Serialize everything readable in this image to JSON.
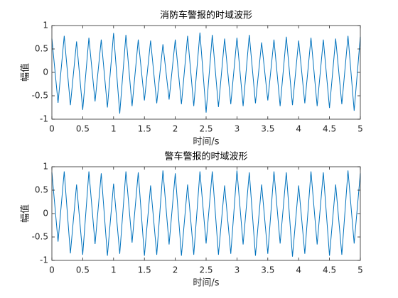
{
  "chart_data": [
    {
      "type": "line",
      "title": "消防车警报的时域波形",
      "xlabel": "时间/s",
      "ylabel": "幅值",
      "x": [
        0,
        0.1,
        0.2,
        0.3,
        0.4,
        0.5,
        0.6,
        0.7,
        0.8,
        0.9,
        1,
        1.1,
        1.2,
        1.3,
        1.4,
        1.5,
        1.6,
        1.7,
        1.8,
        1.9,
        2,
        2.1,
        2.2,
        2.3,
        2.4,
        2.5,
        2.6,
        2.7,
        2.8,
        2.9,
        3,
        3.1,
        3.2,
        3.3,
        3.4,
        3.5,
        3.6,
        3.7,
        3.8,
        3.9,
        4,
        4.1,
        4.2,
        4.3,
        4.4,
        4.5,
        4.6,
        4.7,
        4.8,
        4.9,
        5
      ],
      "series": [
        {
          "color": "#0072bd",
          "values": [
            0.72,
            -0.65,
            0.78,
            -0.7,
            0.66,
            -0.8,
            0.74,
            -0.62,
            0.7,
            -0.75,
            0.84,
            -0.88,
            0.8,
            -0.72,
            0.7,
            -0.6,
            0.68,
            -0.66,
            0.6,
            -0.58,
            0.7,
            -0.68,
            0.78,
            -0.72,
            0.85,
            -0.86,
            0.8,
            -0.74,
            0.72,
            -0.68,
            0.74,
            -0.72,
            0.8,
            -0.66,
            0.64,
            -0.6,
            0.7,
            -0.72,
            0.76,
            -0.7,
            0.68,
            -0.66,
            0.74,
            -0.72,
            0.7,
            -0.76,
            0.72,
            -0.68,
            0.78,
            -0.82,
            0.76
          ]
        }
      ],
      "xlim": [
        0,
        5
      ],
      "xticks": [
        0,
        0.5,
        1,
        1.5,
        2,
        2.5,
        3,
        3.5,
        4,
        4.5,
        5
      ],
      "ylim": [
        -1,
        1
      ],
      "yticks": [
        -1,
        -0.5,
        0,
        0.5,
        1
      ]
    },
    {
      "type": "line",
      "title": "警车警报的时域波形",
      "xlabel": "时间/s",
      "ylabel": "幅值",
      "x": [
        0,
        0.1,
        0.2,
        0.3,
        0.4,
        0.5,
        0.6,
        0.7,
        0.8,
        0.9,
        1,
        1.1,
        1.2,
        1.3,
        1.4,
        1.5,
        1.6,
        1.7,
        1.8,
        1.9,
        2,
        2.1,
        2.2,
        2.3,
        2.4,
        2.5,
        2.6,
        2.7,
        2.8,
        2.9,
        3,
        3.1,
        3.2,
        3.3,
        3.4,
        3.5,
        3.6,
        3.7,
        3.8,
        3.9,
        4,
        4.1,
        4.2,
        4.3,
        4.4,
        4.5,
        4.6,
        4.7,
        4.8,
        4.9,
        5
      ],
      "series": [
        {
          "color": "#0072bd",
          "values": [
            0.88,
            -0.6,
            0.9,
            -0.85,
            0.62,
            -0.88,
            0.9,
            -0.65,
            0.86,
            -0.9,
            0.64,
            -0.86,
            0.9,
            -0.62,
            0.88,
            -0.9,
            0.6,
            -0.88,
            0.92,
            -0.66,
            0.86,
            -0.9,
            0.62,
            -0.88,
            0.9,
            -0.64,
            0.9,
            -0.88,
            0.6,
            -0.86,
            0.92,
            -0.66,
            0.88,
            -0.9,
            0.62,
            -0.86,
            0.9,
            -0.64,
            0.88,
            -0.92,
            0.6,
            -0.86,
            0.9,
            -0.66,
            0.88,
            -0.9,
            0.62,
            -0.88,
            0.92,
            -0.64,
            0.86
          ]
        }
      ],
      "xlim": [
        0,
        5
      ],
      "xticks": [
        0,
        0.5,
        1,
        1.5,
        2,
        2.5,
        3,
        3.5,
        4,
        4.5,
        5
      ],
      "ylim": [
        -1,
        1
      ],
      "yticks": [
        -1,
        -0.5,
        0,
        0.5,
        1
      ]
    }
  ]
}
